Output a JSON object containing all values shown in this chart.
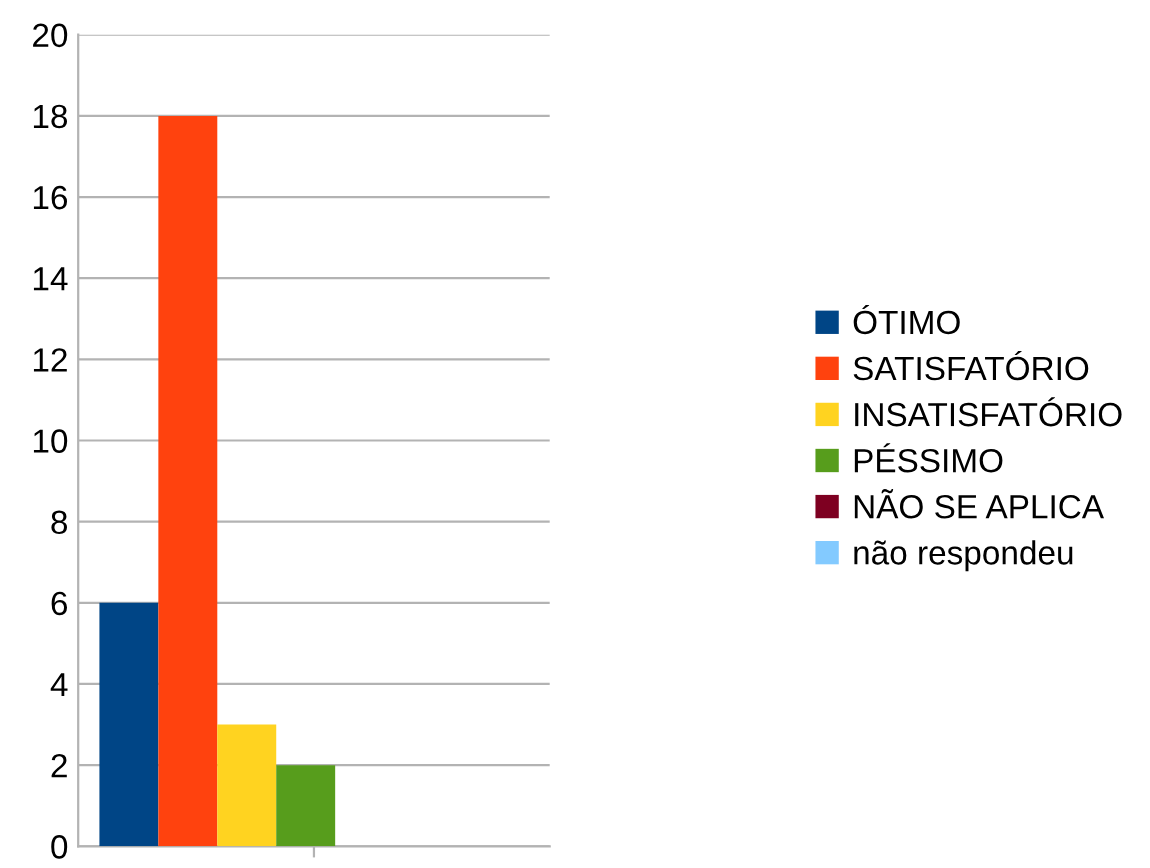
{
  "chart_data": {
    "type": "bar",
    "categories": [
      null
    ],
    "series": [
      {
        "name": "ÓTIMO",
        "color": "#004586",
        "values": [
          6
        ]
      },
      {
        "name": "SATISFATÓRIO",
        "color": "#ff420e",
        "values": [
          18
        ]
      },
      {
        "name": "INSATISFATÓRIO",
        "color": "#ffd320",
        "values": [
          3
        ]
      },
      {
        "name": "PÉSSIMO",
        "color": "#579d1c",
        "values": [
          2
        ]
      },
      {
        "name": "NÃO SE APLICA",
        "color": "#7e0021",
        "values": [
          0
        ]
      },
      {
        "name": "não respondeu",
        "color": "#83caff",
        "values": [
          0
        ]
      }
    ],
    "ylim": [
      0,
      20
    ],
    "yticks": [
      0,
      2,
      4,
      6,
      8,
      10,
      12,
      14,
      16,
      18,
      20
    ],
    "grid": "y",
    "legend": "right"
  }
}
